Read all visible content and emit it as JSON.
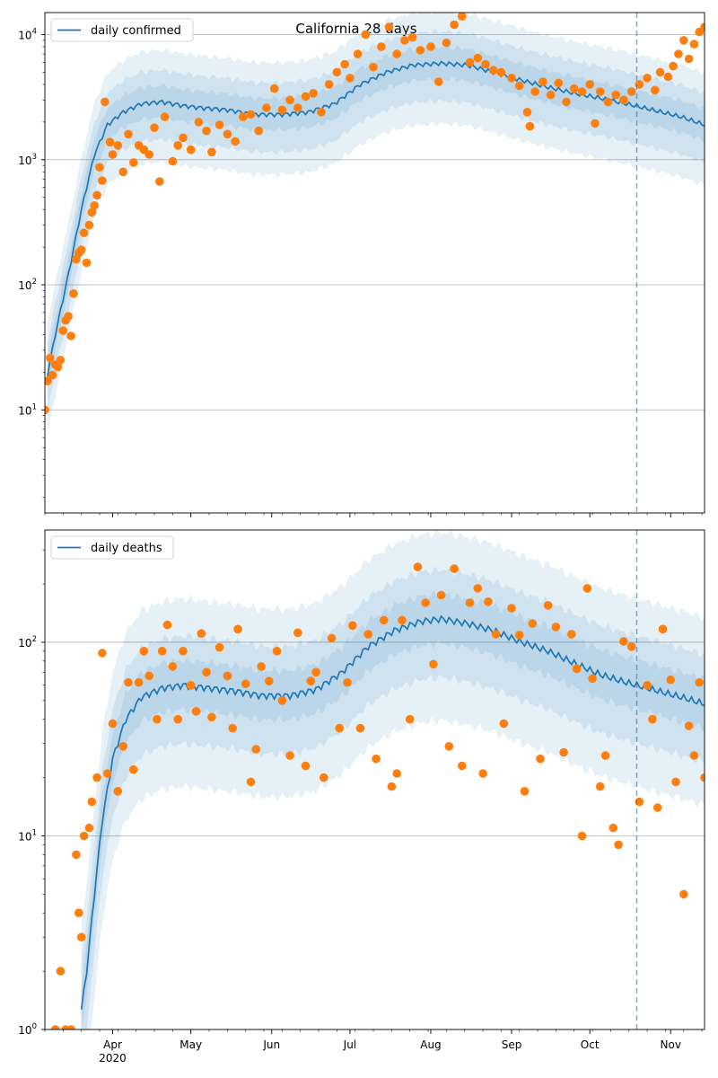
{
  "title": "California 28 days",
  "colors": {
    "model_line": "#1f77b4",
    "observed": "#ff7f0e",
    "band": "#1f77b4",
    "grid": "#b0b0b0",
    "forecast_line": "#1f77b4"
  },
  "x_axis": {
    "tick_labels": [
      "Apr",
      "May",
      "Jun",
      "Jul",
      "Aug",
      "Sep",
      "Oct",
      "Nov"
    ],
    "tick_dates": [
      "2020-04-01",
      "2020-05-01",
      "2020-06-01",
      "2020-07-01",
      "2020-08-01",
      "2020-09-01",
      "2020-10-01",
      "2020-11-01"
    ],
    "year_label": "2020",
    "range": [
      "2020-03-06",
      "2020-11-14"
    ],
    "forecast_start": "2020-10-19"
  },
  "chart_data": [
    {
      "type": "scatter",
      "name": "confirmed",
      "legend": "daily confirmed",
      "legend_position": "top-left",
      "yscale": "log",
      "ylim": [
        1.5,
        15000
      ],
      "y_ticks": [
        {
          "value": 10,
          "label": "10",
          "exp": "1"
        },
        {
          "value": 100,
          "label": "10",
          "exp": "2"
        },
        {
          "value": 1000,
          "label": "10",
          "exp": "3"
        },
        {
          "value": 10000,
          "label": "10",
          "exp": "4"
        }
      ],
      "grid": true,
      "model_median": [
        [
          "2020-03-06",
          15
        ],
        [
          "2020-03-10",
          40
        ],
        [
          "2020-03-15",
          120
        ],
        [
          "2020-03-20",
          400
        ],
        [
          "2020-03-25",
          1100
        ],
        [
          "2020-03-30",
          1900
        ],
        [
          "2020-04-05",
          2400
        ],
        [
          "2020-04-12",
          2800
        ],
        [
          "2020-04-20",
          2900
        ],
        [
          "2020-04-28",
          2700
        ],
        [
          "2020-05-05",
          2600
        ],
        [
          "2020-05-15",
          2500
        ],
        [
          "2020-05-25",
          2300
        ],
        [
          "2020-06-05",
          2300
        ],
        [
          "2020-06-15",
          2400
        ],
        [
          "2020-06-25",
          2800
        ],
        [
          "2020-07-05",
          4000
        ],
        [
          "2020-07-15",
          5000
        ],
        [
          "2020-07-25",
          5700
        ],
        [
          "2020-08-05",
          5900
        ],
        [
          "2020-08-15",
          5700
        ],
        [
          "2020-08-25",
          5000
        ],
        [
          "2020-09-05",
          4300
        ],
        [
          "2020-09-15",
          3800
        ],
        [
          "2020-09-25",
          3400
        ],
        [
          "2020-10-05",
          3100
        ],
        [
          "2020-10-15",
          2800
        ],
        [
          "2020-10-25",
          2500
        ],
        [
          "2020-11-05",
          2200
        ],
        [
          "2020-11-14",
          1900
        ]
      ],
      "bands": [
        {
          "lower_factor": 0.75,
          "upper_factor": 1.35
        },
        {
          "lower_factor": 0.5,
          "upper_factor": 1.8
        },
        {
          "lower_factor": 0.33,
          "upper_factor": 2.6
        }
      ],
      "observed": [
        [
          "2020-03-06",
          10
        ],
        [
          "2020-03-07",
          17
        ],
        [
          "2020-03-08",
          26
        ],
        [
          "2020-03-09",
          19
        ],
        [
          "2020-03-10",
          23
        ],
        [
          "2020-03-11",
          22
        ],
        [
          "2020-03-12",
          25
        ],
        [
          "2020-03-13",
          43
        ],
        [
          "2020-03-14",
          52
        ],
        [
          "2020-03-15",
          56
        ],
        [
          "2020-03-16",
          39
        ],
        [
          "2020-03-17",
          85
        ],
        [
          "2020-03-18",
          160
        ],
        [
          "2020-03-19",
          180
        ],
        [
          "2020-03-20",
          190
        ],
        [
          "2020-03-21",
          260
        ],
        [
          "2020-03-22",
          150
        ],
        [
          "2020-03-23",
          300
        ],
        [
          "2020-03-24",
          380
        ],
        [
          "2020-03-25",
          430
        ],
        [
          "2020-03-26",
          520
        ],
        [
          "2020-03-27",
          870
        ],
        [
          "2020-03-28",
          680
        ],
        [
          "2020-03-29",
          2900
        ],
        [
          "2020-03-31",
          1380
        ],
        [
          "2020-04-01",
          1100
        ],
        [
          "2020-04-03",
          1300
        ],
        [
          "2020-04-05",
          800
        ],
        [
          "2020-04-07",
          1600
        ],
        [
          "2020-04-09",
          950
        ],
        [
          "2020-04-11",
          1300
        ],
        [
          "2020-04-13",
          1200
        ],
        [
          "2020-04-15",
          1100
        ],
        [
          "2020-04-17",
          1800
        ],
        [
          "2020-04-19",
          670
        ],
        [
          "2020-04-21",
          2200
        ],
        [
          "2020-04-24",
          970
        ],
        [
          "2020-04-26",
          1300
        ],
        [
          "2020-04-28",
          1500
        ],
        [
          "2020-05-01",
          1200
        ],
        [
          "2020-05-04",
          2000
        ],
        [
          "2020-05-07",
          1700
        ],
        [
          "2020-05-09",
          1150
        ],
        [
          "2020-05-12",
          1900
        ],
        [
          "2020-05-15",
          1600
        ],
        [
          "2020-05-18",
          1400
        ],
        [
          "2020-05-21",
          2200
        ],
        [
          "2020-05-24",
          2300
        ],
        [
          "2020-05-27",
          1700
        ],
        [
          "2020-05-30",
          2600
        ],
        [
          "2020-06-02",
          3700
        ],
        [
          "2020-06-05",
          2500
        ],
        [
          "2020-06-08",
          3000
        ],
        [
          "2020-06-11",
          2600
        ],
        [
          "2020-06-14",
          3200
        ],
        [
          "2020-06-17",
          3400
        ],
        [
          "2020-06-20",
          2400
        ],
        [
          "2020-06-23",
          4000
        ],
        [
          "2020-06-26",
          5000
        ],
        [
          "2020-06-29",
          5800
        ],
        [
          "2020-07-01",
          4500
        ],
        [
          "2020-07-04",
          7000
        ],
        [
          "2020-07-07",
          10000
        ],
        [
          "2020-07-10",
          5500
        ],
        [
          "2020-07-13",
          8000
        ],
        [
          "2020-07-16",
          11500
        ],
        [
          "2020-07-19",
          7000
        ],
        [
          "2020-07-22",
          9000
        ],
        [
          "2020-07-25",
          9500
        ],
        [
          "2020-07-28",
          7500
        ],
        [
          "2020-08-01",
          8000
        ],
        [
          "2020-08-04",
          4200
        ],
        [
          "2020-08-07",
          8600
        ],
        [
          "2020-08-10",
          12000
        ],
        [
          "2020-08-13",
          14000
        ],
        [
          "2020-08-16",
          6000
        ],
        [
          "2020-08-19",
          6500
        ],
        [
          "2020-08-22",
          5800
        ],
        [
          "2020-08-25",
          5200
        ],
        [
          "2020-08-28",
          5000
        ],
        [
          "2020-09-01",
          4500
        ],
        [
          "2020-09-04",
          3900
        ],
        [
          "2020-09-07",
          2400
        ],
        [
          "2020-09-08",
          1850
        ],
        [
          "2020-09-10",
          3500
        ],
        [
          "2020-09-13",
          4200
        ],
        [
          "2020-09-16",
          3300
        ],
        [
          "2020-09-19",
          4100
        ],
        [
          "2020-09-22",
          2900
        ],
        [
          "2020-09-25",
          3700
        ],
        [
          "2020-09-28",
          3500
        ],
        [
          "2020-10-01",
          4000
        ],
        [
          "2020-10-03",
          1950
        ],
        [
          "2020-10-05",
          3500
        ],
        [
          "2020-10-08",
          2900
        ],
        [
          "2020-10-11",
          3300
        ],
        [
          "2020-10-14",
          3000
        ],
        [
          "2020-10-17",
          3500
        ],
        [
          "2020-10-20",
          4000
        ],
        [
          "2020-10-23",
          4500
        ],
        [
          "2020-10-26",
          3600
        ],
        [
          "2020-10-28",
          5000
        ],
        [
          "2020-10-31",
          4600
        ],
        [
          "2020-11-02",
          5600
        ],
        [
          "2020-11-04",
          7000
        ],
        [
          "2020-11-06",
          9000
        ],
        [
          "2020-11-08",
          6400
        ],
        [
          "2020-11-10",
          8400
        ],
        [
          "2020-11-12",
          10500
        ],
        [
          "2020-11-14",
          11500
        ]
      ]
    },
    {
      "type": "scatter",
      "name": "deaths",
      "legend": "daily deaths",
      "legend_position": "top-left",
      "yscale": "log",
      "ylim": [
        1,
        380
      ],
      "y_ticks": [
        {
          "value": 1,
          "label": "10",
          "exp": "0"
        },
        {
          "value": 10,
          "label": "10",
          "exp": "1"
        },
        {
          "value": 100,
          "label": "10",
          "exp": "2"
        }
      ],
      "grid": true,
      "model_median": [
        [
          "2020-03-19",
          1
        ],
        [
          "2020-03-22",
          2
        ],
        [
          "2020-03-25",
          5
        ],
        [
          "2020-03-28",
          12
        ],
        [
          "2020-04-01",
          25
        ],
        [
          "2020-04-06",
          40
        ],
        [
          "2020-04-12",
          52
        ],
        [
          "2020-04-20",
          58
        ],
        [
          "2020-04-28",
          60
        ],
        [
          "2020-05-08",
          58
        ],
        [
          "2020-05-18",
          56
        ],
        [
          "2020-05-28",
          53
        ],
        [
          "2020-06-08",
          53
        ],
        [
          "2020-06-18",
          57
        ],
        [
          "2020-06-28",
          70
        ],
        [
          "2020-07-08",
          95
        ],
        [
          "2020-07-18",
          115
        ],
        [
          "2020-07-28",
          128
        ],
        [
          "2020-08-05",
          132
        ],
        [
          "2020-08-15",
          125
        ],
        [
          "2020-08-25",
          115
        ],
        [
          "2020-09-05",
          100
        ],
        [
          "2020-09-15",
          90
        ],
        [
          "2020-09-25",
          78
        ],
        [
          "2020-10-05",
          68
        ],
        [
          "2020-10-15",
          62
        ],
        [
          "2020-10-25",
          57
        ],
        [
          "2020-11-05",
          52
        ],
        [
          "2020-11-14",
          48
        ]
      ],
      "bands": [
        {
          "lower_factor": 0.75,
          "upper_factor": 1.35
        },
        {
          "lower_factor": 0.5,
          "upper_factor": 1.8
        },
        {
          "lower_factor": 0.3,
          "upper_factor": 2.8
        }
      ],
      "observed": [
        [
          "2020-03-10",
          1
        ],
        [
          "2020-03-12",
          2
        ],
        [
          "2020-03-14",
          1
        ],
        [
          "2020-03-16",
          1
        ],
        [
          "2020-03-18",
          8
        ],
        [
          "2020-03-19",
          4
        ],
        [
          "2020-03-20",
          3
        ],
        [
          "2020-03-21",
          10
        ],
        [
          "2020-03-23",
          11
        ],
        [
          "2020-03-24",
          15
        ],
        [
          "2020-03-26",
          20
        ],
        [
          "2020-03-28",
          88
        ],
        [
          "2020-03-30",
          21
        ],
        [
          "2020-04-01",
          38
        ],
        [
          "2020-04-03",
          17
        ],
        [
          "2020-04-05",
          29
        ],
        [
          "2020-04-07",
          62
        ],
        [
          "2020-04-09",
          22
        ],
        [
          "2020-04-11",
          62
        ],
        [
          "2020-04-13",
          90
        ],
        [
          "2020-04-15",
          67
        ],
        [
          "2020-04-18",
          40
        ],
        [
          "2020-04-20",
          90
        ],
        [
          "2020-04-22",
          123
        ],
        [
          "2020-04-24",
          75
        ],
        [
          "2020-04-26",
          40
        ],
        [
          "2020-04-28",
          90
        ],
        [
          "2020-05-01",
          60
        ],
        [
          "2020-05-03",
          44
        ],
        [
          "2020-05-05",
          111
        ],
        [
          "2020-05-07",
          70
        ],
        [
          "2020-05-09",
          41
        ],
        [
          "2020-05-12",
          94
        ],
        [
          "2020-05-15",
          67
        ],
        [
          "2020-05-17",
          36
        ],
        [
          "2020-05-19",
          117
        ],
        [
          "2020-05-22",
          61
        ],
        [
          "2020-05-24",
          19
        ],
        [
          "2020-05-26",
          28
        ],
        [
          "2020-05-28",
          75
        ],
        [
          "2020-05-31",
          63
        ],
        [
          "2020-06-03",
          90
        ],
        [
          "2020-06-05",
          50
        ],
        [
          "2020-06-08",
          26
        ],
        [
          "2020-06-11",
          112
        ],
        [
          "2020-06-14",
          23
        ],
        [
          "2020-06-16",
          63
        ],
        [
          "2020-06-18",
          70
        ],
        [
          "2020-06-21",
          20
        ],
        [
          "2020-06-24",
          105
        ],
        [
          "2020-06-27",
          36
        ],
        [
          "2020-06-30",
          62
        ],
        [
          "2020-07-02",
          122
        ],
        [
          "2020-07-05",
          36
        ],
        [
          "2020-07-08",
          110
        ],
        [
          "2020-07-11",
          25
        ],
        [
          "2020-07-14",
          130
        ],
        [
          "2020-07-17",
          18
        ],
        [
          "2020-07-19",
          21
        ],
        [
          "2020-07-21",
          130
        ],
        [
          "2020-07-24",
          40
        ],
        [
          "2020-07-27",
          245
        ],
        [
          "2020-07-30",
          160
        ],
        [
          "2020-08-02",
          77
        ],
        [
          "2020-08-05",
          175
        ],
        [
          "2020-08-08",
          29
        ],
        [
          "2020-08-10",
          240
        ],
        [
          "2020-08-13",
          23
        ],
        [
          "2020-08-16",
          160
        ],
        [
          "2020-08-19",
          190
        ],
        [
          "2020-08-21",
          21
        ],
        [
          "2020-08-23",
          162
        ],
        [
          "2020-08-26",
          110
        ],
        [
          "2020-08-29",
          38
        ],
        [
          "2020-09-01",
          150
        ],
        [
          "2020-09-04",
          109
        ],
        [
          "2020-09-06",
          17
        ],
        [
          "2020-09-09",
          125
        ],
        [
          "2020-09-12",
          25
        ],
        [
          "2020-09-15",
          155
        ],
        [
          "2020-09-18",
          120
        ],
        [
          "2020-09-21",
          27
        ],
        [
          "2020-09-24",
          110
        ],
        [
          "2020-09-26",
          73
        ],
        [
          "2020-09-28",
          10
        ],
        [
          "2020-09-30",
          190
        ],
        [
          "2020-10-02",
          65
        ],
        [
          "2020-10-05",
          18
        ],
        [
          "2020-10-07",
          26
        ],
        [
          "2020-10-10",
          11
        ],
        [
          "2020-10-12",
          9
        ],
        [
          "2020-10-14",
          101
        ],
        [
          "2020-10-17",
          95
        ],
        [
          "2020-10-20",
          15
        ],
        [
          "2020-10-23",
          60
        ],
        [
          "2020-10-25",
          40
        ],
        [
          "2020-10-27",
          14
        ],
        [
          "2020-10-29",
          117
        ],
        [
          "2020-11-01",
          64
        ],
        [
          "2020-11-03",
          19
        ],
        [
          "2020-11-06",
          5
        ],
        [
          "2020-11-08",
          37
        ],
        [
          "2020-11-10",
          26
        ],
        [
          "2020-11-12",
          62
        ],
        [
          "2020-11-14",
          20
        ]
      ]
    }
  ]
}
